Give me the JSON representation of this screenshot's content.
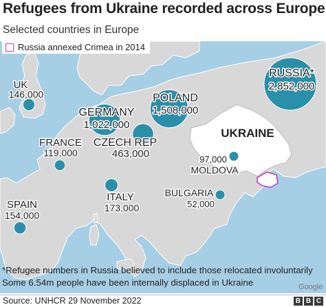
{
  "title": "Refugees from Ukraine recorded across Europe",
  "subtitle": "Selected countries in Europe",
  "legend": {
    "label": "Russia annexed Crimea in 2014",
    "swatch_color": "#c23cc4"
  },
  "countries": [
    {
      "id": "uk",
      "name": "UK",
      "value": "146,000",
      "refugees": 146000
    },
    {
      "id": "france",
      "name": "FRANCE",
      "value": "119,000",
      "refugees": 119000
    },
    {
      "id": "spain",
      "name": "SPAIN",
      "value": "154,000",
      "refugees": 154000
    },
    {
      "id": "germany",
      "name": "GERMANY",
      "value": "1,022,000",
      "refugees": 1022000
    },
    {
      "id": "czech",
      "name": "CZECH REP",
      "value": "463,000",
      "refugees": 463000
    },
    {
      "id": "poland",
      "name": "POLAND",
      "value": "1,508,000",
      "refugees": 1508000
    },
    {
      "id": "russia",
      "name": "RUSSIA*",
      "value": "2,852,000",
      "refugees": 2852000
    },
    {
      "id": "italy",
      "name": "ITALY",
      "value": "173,000",
      "refugees": 173000
    },
    {
      "id": "bulgaria",
      "name": "BULGARIA",
      "value": "52,000",
      "refugees": 52000
    },
    {
      "id": "moldova",
      "name": "MOLDOVA",
      "value": "97,000",
      "refugees": 97000
    }
  ],
  "ukraine_label": "UKRAINE",
  "notes": [
    "*Refugee numbers in Russia believed to include those relocated involuntarily",
    "Some 6.54m people have been internally displaced in Ukraine"
  ],
  "google_credit": "Google",
  "source": "Source: UNHCR 29 November 2022",
  "logo": [
    "B",
    "B",
    "C"
  ],
  "colors": {
    "bubble": "#2a8fa8",
    "sea": "#a6cfe6",
    "land": "#d8d8d8",
    "ukraine": "#ffffff",
    "crimea_outline": "#c23cc4"
  }
}
